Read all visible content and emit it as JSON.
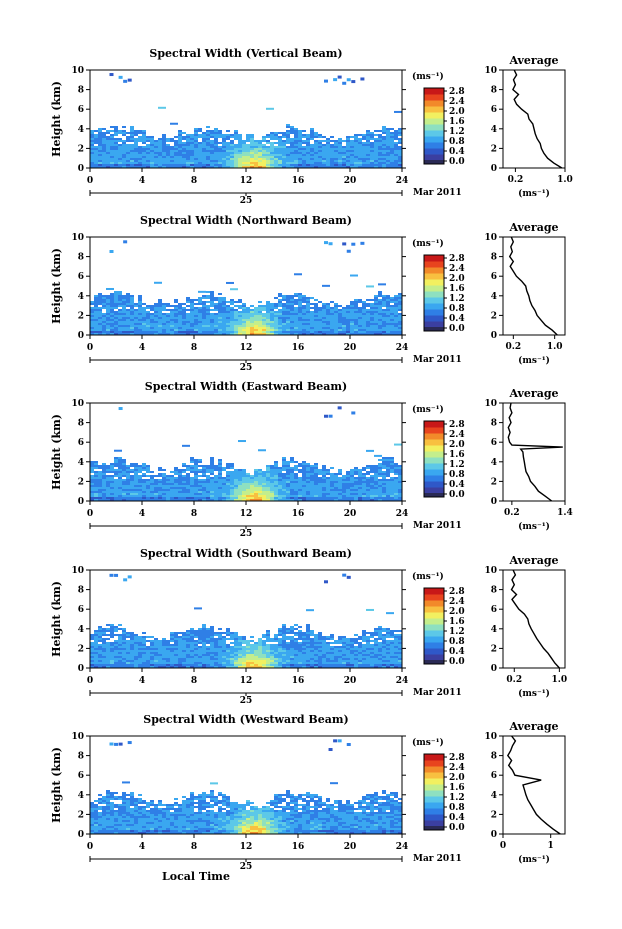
{
  "figure": {
    "xlabel": "Local Time",
    "date_label": "Mar 2011",
    "day_label": "25",
    "avg_title": "Average",
    "colorbar_unit": "(ms⁻¹)",
    "avg_xlabel": "(ms⁻¹)",
    "ylabel": "Height (km)"
  },
  "colors": {
    "scale": [
      "#3b3fa0",
      "#2f58c8",
      "#2f7fe6",
      "#3aa7f0",
      "#5cc8e8",
      "#8ee0c0",
      "#c4ee8c",
      "#f2f060",
      "#f8c040",
      "#f28a2a",
      "#e8441e",
      "#c81818"
    ],
    "floor": "#2a2a55"
  },
  "chart_data": [
    {
      "type": "heatmap",
      "title": "Spectral Width (Vertical Beam)",
      "xlim": [
        0,
        24
      ],
      "ylim": [
        0,
        10
      ],
      "xticks": [
        0,
        4,
        8,
        12,
        16,
        20,
        24
      ],
      "yticks": [
        0,
        2,
        4,
        6,
        8,
        10
      ],
      "colorbar_ticks": [
        "2.8",
        "2.4",
        "2.0",
        "1.6",
        "1.2",
        "0.8",
        "0.4",
        "0.0"
      ],
      "clim": [
        0,
        2.8
      ],
      "average_profile": {
        "xlim": [
          0,
          1.0
        ],
        "xticks": [
          {
            "v": 0.2,
            "label": "0.2"
          },
          {
            "v": 1.0,
            "label": "1.0"
          }
        ],
        "height": [
          0,
          0.5,
          1,
          1.5,
          2,
          2.5,
          3,
          3.5,
          4,
          4.5,
          5,
          5.5,
          6,
          6.5,
          7,
          7.5,
          8,
          8.5,
          9,
          9.5,
          10
        ],
        "value": [
          0.95,
          0.82,
          0.72,
          0.66,
          0.62,
          0.6,
          0.55,
          0.52,
          0.5,
          0.48,
          0.42,
          0.4,
          0.3,
          0.22,
          0.18,
          0.25,
          0.16,
          0.2,
          0.17,
          0.22,
          0.18
        ]
      }
    },
    {
      "type": "heatmap",
      "title": "Spectral Width (Northward Beam)",
      "xlim": [
        0,
        24
      ],
      "ylim": [
        0,
        10
      ],
      "xticks": [
        0,
        4,
        8,
        12,
        16,
        20,
        24
      ],
      "yticks": [
        0,
        2,
        4,
        6,
        8,
        10
      ],
      "colorbar_ticks": [
        "2.8",
        "2.4",
        "2.0",
        "1.6",
        "1.2",
        "0.8",
        "0.4",
        "0.0"
      ],
      "clim": [
        0,
        2.8
      ],
      "average_profile": {
        "xlim": [
          0,
          1.2
        ],
        "xticks": [
          {
            "v": 0.2,
            "label": "0.2"
          },
          {
            "v": 1.0,
            "label": "1.0"
          }
        ],
        "height": [
          0,
          0.5,
          1,
          1.5,
          2,
          2.5,
          3,
          3.5,
          4,
          4.5,
          5,
          5.5,
          6,
          6.5,
          7,
          7.5,
          8,
          8.5,
          9,
          9.5,
          10
        ],
        "value": [
          1.05,
          0.95,
          0.82,
          0.74,
          0.66,
          0.62,
          0.56,
          0.52,
          0.5,
          0.46,
          0.44,
          0.36,
          0.26,
          0.2,
          0.14,
          0.2,
          0.13,
          0.18,
          0.15,
          0.2,
          0.16
        ]
      }
    },
    {
      "type": "heatmap",
      "title": "Spectral Width (Eastward Beam)",
      "xlim": [
        0,
        24
      ],
      "ylim": [
        0,
        10
      ],
      "xticks": [
        0,
        4,
        8,
        12,
        16,
        20,
        24
      ],
      "yticks": [
        0,
        2,
        4,
        6,
        8,
        10
      ],
      "colorbar_ticks": [
        "2.8",
        "2.4",
        "2.0",
        "1.6",
        "1.2",
        "0.8",
        "0.4",
        "0.0"
      ],
      "clim": [
        0,
        2.8
      ],
      "average_profile": {
        "xlim": [
          0,
          1.4
        ],
        "xticks": [
          {
            "v": 0.2,
            "label": "0.2"
          },
          {
            "v": 1.4,
            "label": "1.4"
          }
        ],
        "height": [
          0,
          0.5,
          1,
          1.5,
          2,
          2.5,
          3,
          3.5,
          4,
          4.5,
          5,
          5.3,
          5.5,
          5.7,
          6,
          6.5,
          7,
          7.5,
          8,
          8.5,
          9,
          9.5,
          10
        ],
        "value": [
          1.1,
          0.95,
          0.8,
          0.72,
          0.62,
          0.58,
          0.52,
          0.5,
          0.48,
          0.46,
          0.45,
          0.4,
          1.35,
          0.2,
          0.15,
          0.12,
          0.16,
          0.12,
          0.18,
          0.14,
          0.2,
          0.16,
          0.18
        ]
      }
    },
    {
      "type": "heatmap",
      "title": "Spectral Width (Southward Beam)",
      "xlim": [
        0,
        24
      ],
      "ylim": [
        0,
        10
      ],
      "xticks": [
        0,
        4,
        8,
        12,
        16,
        20,
        24
      ],
      "yticks": [
        0,
        2,
        4,
        6,
        8,
        10
      ],
      "colorbar_ticks": [
        "2.8",
        "2.4",
        "2.0",
        "1.6",
        "1.2",
        "0.8",
        "0.4",
        "0.0"
      ],
      "clim": [
        0,
        2.8
      ],
      "average_profile": {
        "xlim": [
          0,
          1.1
        ],
        "xticks": [
          {
            "v": 0.2,
            "label": "0.2"
          },
          {
            "v": 1.0,
            "label": "1.0"
          }
        ],
        "height": [
          0,
          0.5,
          1,
          1.5,
          2,
          2.5,
          3,
          3.5,
          4,
          4.5,
          5,
          5.5,
          6,
          6.5,
          7,
          7.5,
          8,
          8.5,
          9,
          9.5,
          10
        ],
        "value": [
          1.0,
          0.92,
          0.86,
          0.8,
          0.72,
          0.66,
          0.6,
          0.55,
          0.5,
          0.46,
          0.44,
          0.38,
          0.28,
          0.22,
          0.16,
          0.24,
          0.15,
          0.2,
          0.16,
          0.22,
          0.18
        ]
      }
    },
    {
      "type": "heatmap",
      "title": "Spectral Width (Westward Beam)",
      "xlim": [
        0,
        24
      ],
      "ylim": [
        0,
        10
      ],
      "xticks": [
        0,
        4,
        8,
        12,
        16,
        20,
        24
      ],
      "yticks": [
        0,
        2,
        4,
        6,
        8,
        10
      ],
      "colorbar_ticks": [
        "2.8",
        "2.4",
        "2.0",
        "1.6",
        "1.2",
        "0.8",
        "0.4",
        "0.0"
      ],
      "clim": [
        0,
        2.8
      ],
      "average_profile": {
        "xlim": [
          0,
          1.3
        ],
        "xticks": [
          {
            "v": 0,
            "label": "0"
          },
          {
            "v": 1,
            "label": "1"
          }
        ],
        "height": [
          0,
          0.5,
          1,
          1.5,
          2,
          2.5,
          3,
          3.5,
          4,
          4.5,
          5,
          5.5,
          6,
          6.5,
          7,
          7.5,
          8,
          8.5,
          9,
          9.5,
          10
        ],
        "value": [
          1.2,
          1.05,
          0.92,
          0.8,
          0.7,
          0.64,
          0.58,
          0.52,
          0.48,
          0.45,
          0.42,
          0.8,
          0.25,
          0.2,
          0.12,
          0.18,
          0.1,
          0.16,
          0.2,
          0.26,
          0.18
        ]
      }
    }
  ]
}
